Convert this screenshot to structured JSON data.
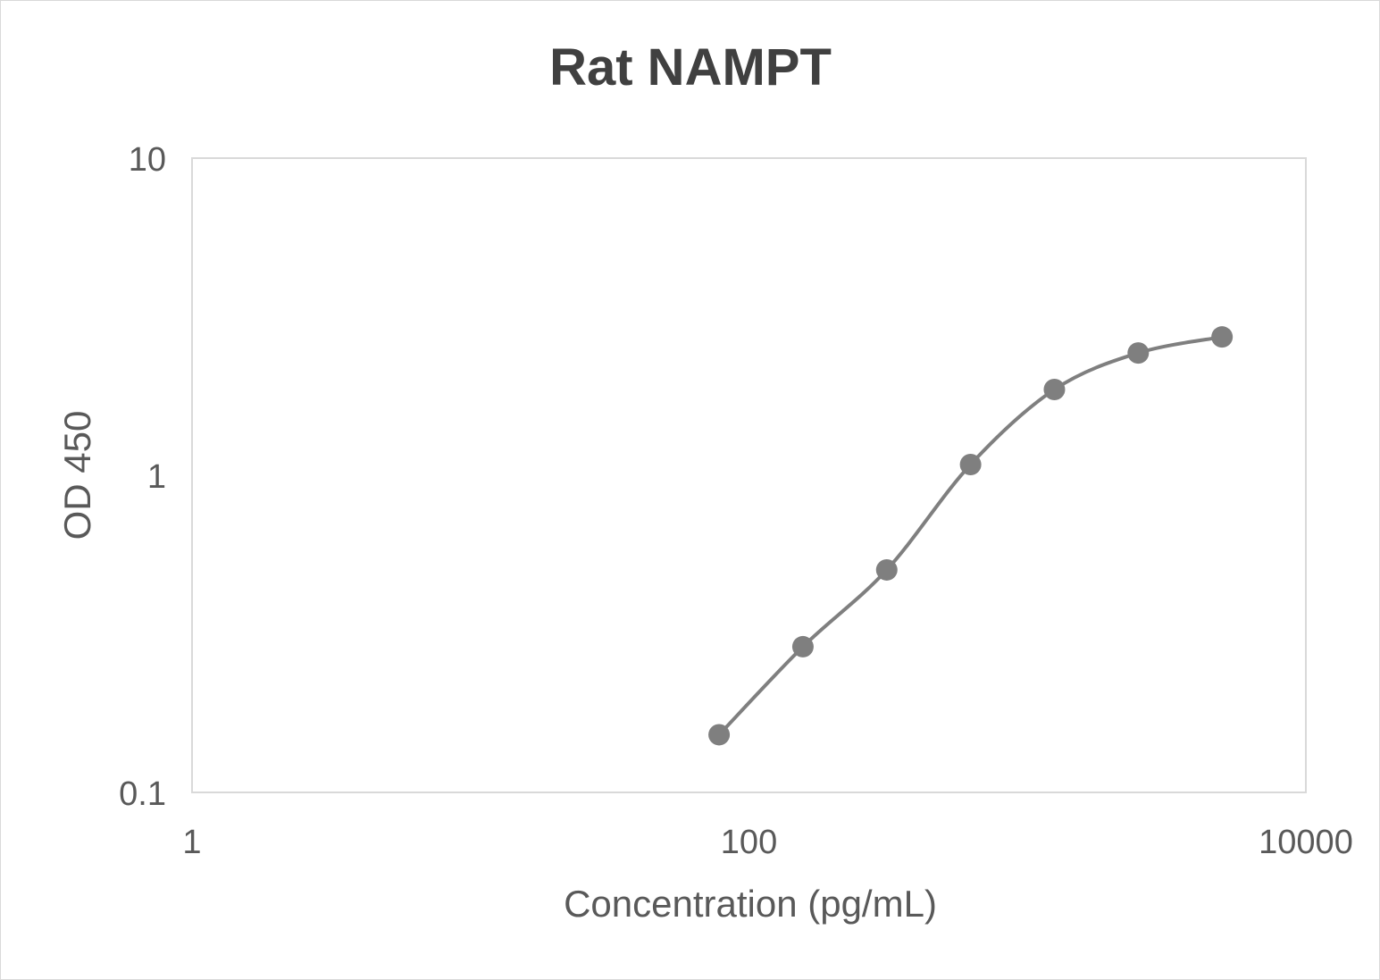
{
  "chart_data": {
    "type": "line",
    "title": "Rat NAMPT",
    "xlabel": "Concentration (pg/mL)",
    "ylabel": "OD 450",
    "x_scale": "log",
    "y_scale": "log",
    "xlim": [
      1,
      10000
    ],
    "ylim": [
      0.1,
      10
    ],
    "x_ticks": [
      "1",
      "100",
      "10000"
    ],
    "y_ticks": [
      "0.1",
      "1",
      "10"
    ],
    "grid": false,
    "smoothed": true,
    "series": [
      {
        "color": "#7f7f7f",
        "x": [
          78.125,
          156.25,
          312.5,
          625,
          1250,
          2500,
          5000
        ],
        "y": [
          0.152,
          0.288,
          0.503,
          1.081,
          1.864,
          2.43,
          2.73
        ]
      }
    ]
  }
}
